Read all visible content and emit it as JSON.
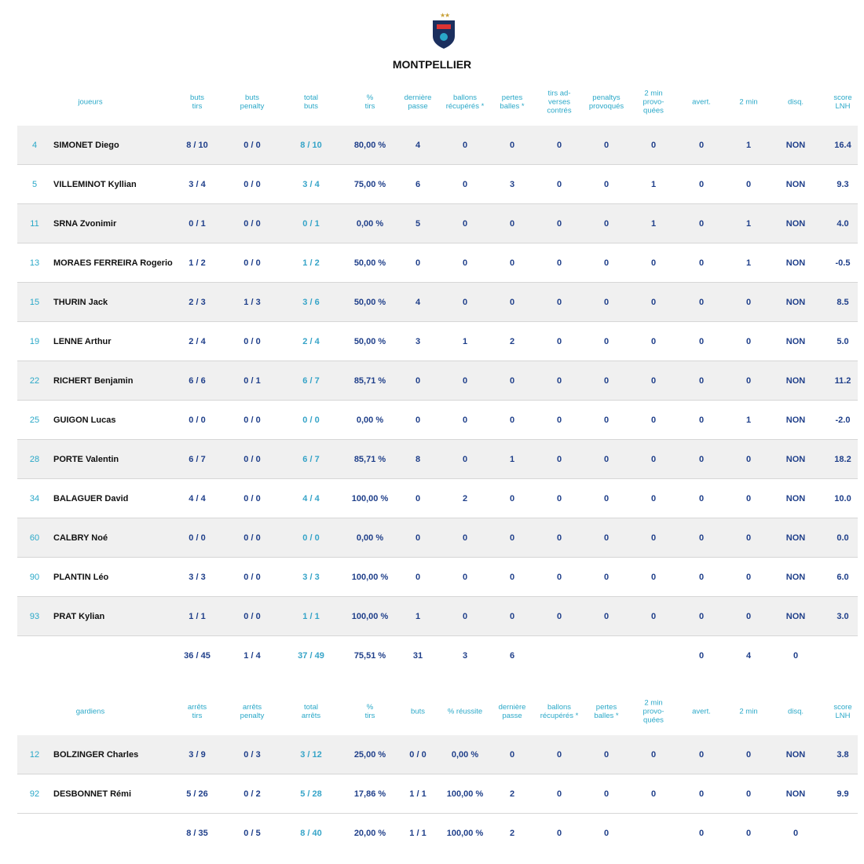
{
  "team": "MONTPELLIER",
  "players": {
    "label": "joueurs",
    "columns": [
      "buts\ntirs",
      "buts\npenalty",
      "total\nbuts",
      "%\ntirs",
      "dernière\npasse",
      "ballons\nrécupérés *",
      "pertes\nballes *",
      "tirs ad-\nverses\ncontrés",
      "penaltys\nprovoqués",
      "2 min\nprovo-\nquées",
      "avert.",
      "2 min",
      "disq.",
      "score\nLNH"
    ],
    "rows": [
      {
        "number": "4",
        "name": "SIMONET Diego",
        "cells": [
          "8 / 10",
          "0 / 0",
          "8 / 10",
          "80,00 %",
          "4",
          "0",
          "0",
          "0",
          "0",
          "0",
          "0",
          "1",
          "NON",
          "16.4"
        ]
      },
      {
        "number": "5",
        "name": "VILLEMINOT Kyllian",
        "cells": [
          "3 / 4",
          "0 / 0",
          "3 / 4",
          "75,00 %",
          "6",
          "0",
          "3",
          "0",
          "0",
          "1",
          "0",
          "0",
          "NON",
          "9.3"
        ]
      },
      {
        "number": "11",
        "name": "SRNA Zvonimir",
        "cells": [
          "0 / 1",
          "0 / 0",
          "0 / 1",
          "0,00 %",
          "5",
          "0",
          "0",
          "0",
          "0",
          "1",
          "0",
          "1",
          "NON",
          "4.0"
        ]
      },
      {
        "number": "13",
        "name": "MORAES FERREIRA Rogerio",
        "cells": [
          "1 / 2",
          "0 / 0",
          "1 / 2",
          "50,00 %",
          "0",
          "0",
          "0",
          "0",
          "0",
          "0",
          "0",
          "1",
          "NON",
          "-0.5"
        ]
      },
      {
        "number": "15",
        "name": "THURIN Jack",
        "cells": [
          "2 / 3",
          "1 / 3",
          "3 / 6",
          "50,00 %",
          "4",
          "0",
          "0",
          "0",
          "0",
          "0",
          "0",
          "0",
          "NON",
          "8.5"
        ]
      },
      {
        "number": "19",
        "name": "LENNE Arthur",
        "cells": [
          "2 / 4",
          "0 / 0",
          "2 / 4",
          "50,00 %",
          "3",
          "1",
          "2",
          "0",
          "0",
          "0",
          "0",
          "0",
          "NON",
          "5.0"
        ]
      },
      {
        "number": "22",
        "name": "RICHERT Benjamin",
        "cells": [
          "6 / 6",
          "0 / 1",
          "6 / 7",
          "85,71 %",
          "0",
          "0",
          "0",
          "0",
          "0",
          "0",
          "0",
          "0",
          "NON",
          "11.2"
        ]
      },
      {
        "number": "25",
        "name": "GUIGON Lucas",
        "cells": [
          "0 / 0",
          "0 / 0",
          "0 / 0",
          "0,00 %",
          "0",
          "0",
          "0",
          "0",
          "0",
          "0",
          "0",
          "1",
          "NON",
          "-2.0"
        ]
      },
      {
        "number": "28",
        "name": "PORTE Valentin",
        "cells": [
          "6 / 7",
          "0 / 0",
          "6 / 7",
          "85,71 %",
          "8",
          "0",
          "1",
          "0",
          "0",
          "0",
          "0",
          "0",
          "NON",
          "18.2"
        ]
      },
      {
        "number": "34",
        "name": "BALAGUER David",
        "cells": [
          "4 / 4",
          "0 / 0",
          "4 / 4",
          "100,00 %",
          "0",
          "2",
          "0",
          "0",
          "0",
          "0",
          "0",
          "0",
          "NON",
          "10.0"
        ]
      },
      {
        "number": "60",
        "name": "CALBRY Noé",
        "cells": [
          "0 / 0",
          "0 / 0",
          "0 / 0",
          "0,00 %",
          "0",
          "0",
          "0",
          "0",
          "0",
          "0",
          "0",
          "0",
          "NON",
          "0.0"
        ]
      },
      {
        "number": "90",
        "name": "PLANTIN Léo",
        "cells": [
          "3 / 3",
          "0 / 0",
          "3 / 3",
          "100,00 %",
          "0",
          "0",
          "0",
          "0",
          "0",
          "0",
          "0",
          "0",
          "NON",
          "6.0"
        ]
      },
      {
        "number": "93",
        "name": "PRAT Kylian",
        "cells": [
          "1 / 1",
          "0 / 0",
          "1 / 1",
          "100,00 %",
          "1",
          "0",
          "0",
          "0",
          "0",
          "0",
          "0",
          "0",
          "NON",
          "3.0"
        ]
      }
    ],
    "totals": [
      "36 / 45",
      "1 / 4",
      "37 / 49",
      "75,51 %",
      "31",
      "3",
      "6",
      null,
      null,
      null,
      "0",
      "4",
      "0",
      null
    ]
  },
  "goalkeepers": {
    "label": "gardiens",
    "columns": [
      "arrêts\ntirs",
      "arrêts\npenalty",
      "total\narrêts",
      "%\ntirs",
      "buts",
      "% réussite",
      "dernière\npasse",
      "ballons\nrécupérés *",
      "pertes\nballes *",
      "2 min\nprovo-\nquées",
      "avert.",
      "2 min",
      "disq.",
      "score\nLNH"
    ],
    "rows": [
      {
        "number": "12",
        "name": "BOLZINGER Charles",
        "cells": [
          "3 / 9",
          "0 / 3",
          "3 / 12",
          "25,00 %",
          "0 / 0",
          "0,00 %",
          "0",
          "0",
          "0",
          "0",
          "0",
          "0",
          "NON",
          "3.8"
        ]
      },
      {
        "number": "92",
        "name": "DESBONNET Rémi",
        "cells": [
          "5 / 26",
          "0 / 2",
          "5 / 28",
          "17,86 %",
          "1 / 1",
          "100,00 %",
          "2",
          "0",
          "0",
          "0",
          "0",
          "0",
          "NON",
          "9.9"
        ]
      }
    ],
    "totals": [
      "8 / 35",
      "0 / 5",
      "8 / 40",
      "20,00 %",
      "1 / 1",
      "100,00 %",
      "2",
      "0",
      "0",
      null,
      "0",
      "0",
      "0",
      null
    ]
  }
}
